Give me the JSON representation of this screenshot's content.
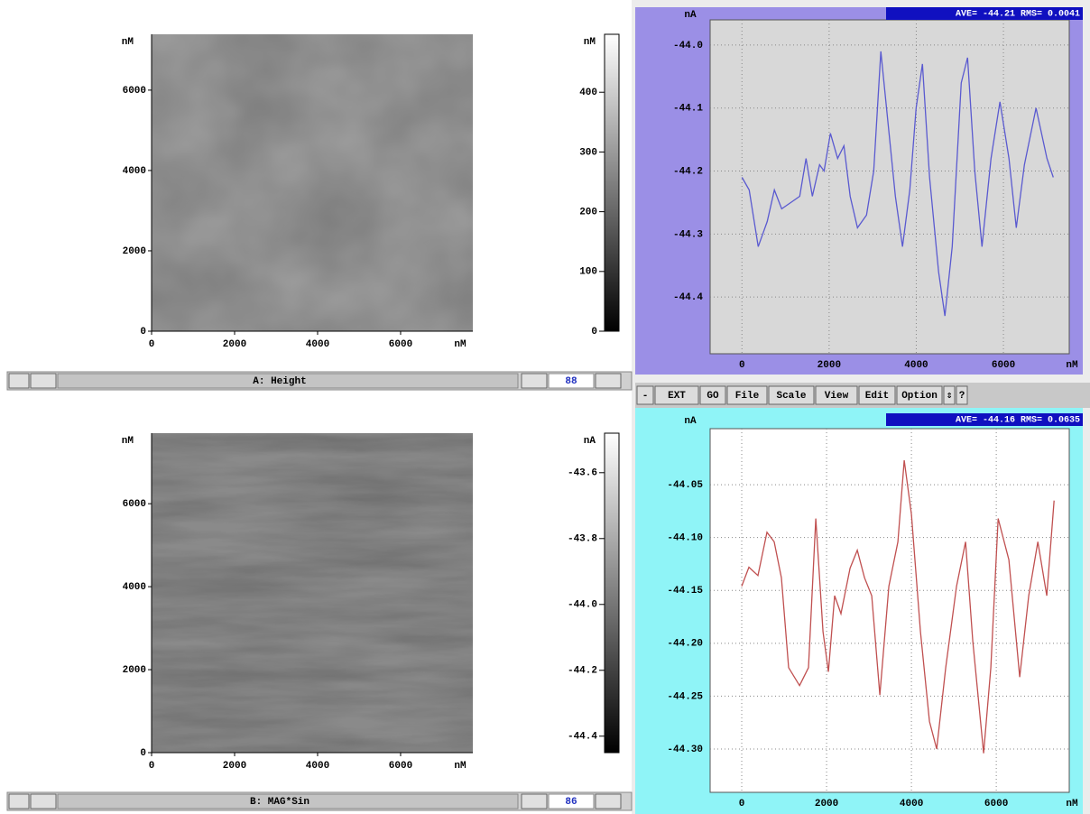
{
  "image_panels": [
    {
      "y_unit": "nM",
      "x_unit": "nM",
      "xlim": [
        0,
        7740
      ],
      "ylim": [
        0,
        7390
      ],
      "xticks": [
        0,
        2000,
        4000,
        6000
      ],
      "yticks": [
        0,
        2000,
        4000,
        6000
      ],
      "colorbar": {
        "unit": "nM",
        "lim": [
          0,
          497
        ],
        "ticks": [
          0,
          100,
          200,
          300,
          400
        ]
      },
      "status": {
        "label": "A: Height",
        "number": "88"
      }
    },
    {
      "y_unit": "nM",
      "x_unit": "nM",
      "xlim": [
        0,
        7740
      ],
      "ylim": [
        0,
        7700
      ],
      "xticks": [
        0,
        2000,
        4000,
        6000
      ],
      "yticks": [
        0,
        2000,
        4000,
        6000
      ],
      "colorbar": {
        "unit": "nA",
        "lim": [
          -44.45,
          -43.48
        ],
        "ticks": [
          {
            "value": -43.6,
            "label": "-43.6"
          },
          {
            "value": -43.8,
            "label": "-43.8"
          },
          {
            "value": -44,
            "label": "-44.0"
          },
          {
            "value": -44.2,
            "label": "-44.2"
          },
          {
            "value": -44.4,
            "label": "-44.4"
          }
        ]
      },
      "status": {
        "label": "B: MAG*Sin",
        "number": "86"
      }
    }
  ],
  "toolbar": {
    "buttons": [
      "-",
      "EXT",
      "GO",
      "File",
      "Scale",
      "View",
      "Edit",
      "Option",
      "⇕",
      "?"
    ]
  },
  "line_charts": [
    {
      "y_unit": "nA",
      "x_unit": "nM",
      "stats": "AVE= -44.21 RMS= 0.0041",
      "xlim": [
        -730,
        7510
      ],
      "ylim": [
        -44.49,
        -43.96
      ],
      "xticks": [
        0,
        2000,
        4000,
        6000
      ],
      "yticks": [
        {
          "value": -44,
          "label": "-44.0"
        },
        -44.1,
        -44.2,
        -44.3,
        -44.4
      ],
      "series": {
        "color": "#5a5ad0",
        "x": [
          0,
          166,
          373,
          580,
          745,
          911,
          1118,
          1325,
          1470,
          1615,
          1781,
          1884,
          2029,
          2195,
          2340,
          2484,
          2650,
          2857,
          3023,
          3188,
          3375,
          3520,
          3685,
          3851,
          3996,
          4141,
          4306,
          4513,
          4658,
          4824,
          5031,
          5176,
          5342,
          5507,
          5714,
          5921,
          6128,
          6294,
          6480,
          6749,
          6998,
          7143
        ],
        "values": [
          -44.21,
          -44.23,
          -44.32,
          -44.28,
          -44.23,
          -44.26,
          -44.25,
          -44.24,
          -44.18,
          -44.24,
          -44.19,
          -44.2,
          -44.14,
          -44.18,
          -44.16,
          -44.24,
          -44.29,
          -44.27,
          -44.2,
          -44.01,
          -44.14,
          -44.24,
          -44.32,
          -44.23,
          -44.1,
          -44.03,
          -44.21,
          -44.36,
          -44.43,
          -44.32,
          -44.06,
          -44.02,
          -44.2,
          -44.32,
          -44.18,
          -44.09,
          -44.18,
          -44.29,
          -44.19,
          -44.1,
          -44.18,
          -44.21
        ]
      }
    },
    {
      "y_unit": "nA",
      "x_unit": "nM",
      "stats": "AVE= -44.16 RMS= 0.0635",
      "xlim": [
        -745,
        7720
      ],
      "ylim": [
        -44.341,
        -43.997
      ],
      "xticks": [
        0,
        2000,
        4000,
        6000
      ],
      "yticks": [
        -44.05,
        {
          "value": -44.1,
          "label": "-44.10"
        },
        -44.15,
        {
          "value": -44.2,
          "label": "-44.20"
        },
        -44.25,
        {
          "value": -44.3,
          "label": "-44.30"
        }
      ],
      "series": {
        "color": "#c05050",
        "x": [
          0,
          170,
          383,
          596,
          766,
          936,
          1106,
          1362,
          1574,
          1745,
          1915,
          2043,
          2191,
          2340,
          2553,
          2723,
          2894,
          3064,
          3255,
          3468,
          3681,
          3830,
          4000,
          4213,
          4426,
          4596,
          4809,
          5064,
          5277,
          5447,
          5702,
          5872,
          6043,
          6298,
          6553,
          6766,
          6979,
          7191,
          7362
        ],
        "values": [
          -44.146,
          -44.128,
          -44.136,
          -44.095,
          -44.104,
          -44.138,
          -44.223,
          -44.24,
          -44.223,
          -44.082,
          -44.189,
          -44.227,
          -44.155,
          -44.172,
          -44.129,
          -44.112,
          -44.138,
          -44.155,
          -44.249,
          -44.146,
          -44.104,
          -44.027,
          -44.078,
          -44.189,
          -44.274,
          -44.3,
          -44.223,
          -44.146,
          -44.104,
          -44.198,
          -44.304,
          -44.223,
          -44.082,
          -44.121,
          -44.232,
          -44.155,
          -44.104,
          -44.155,
          -44.065
        ]
      }
    }
  ]
}
